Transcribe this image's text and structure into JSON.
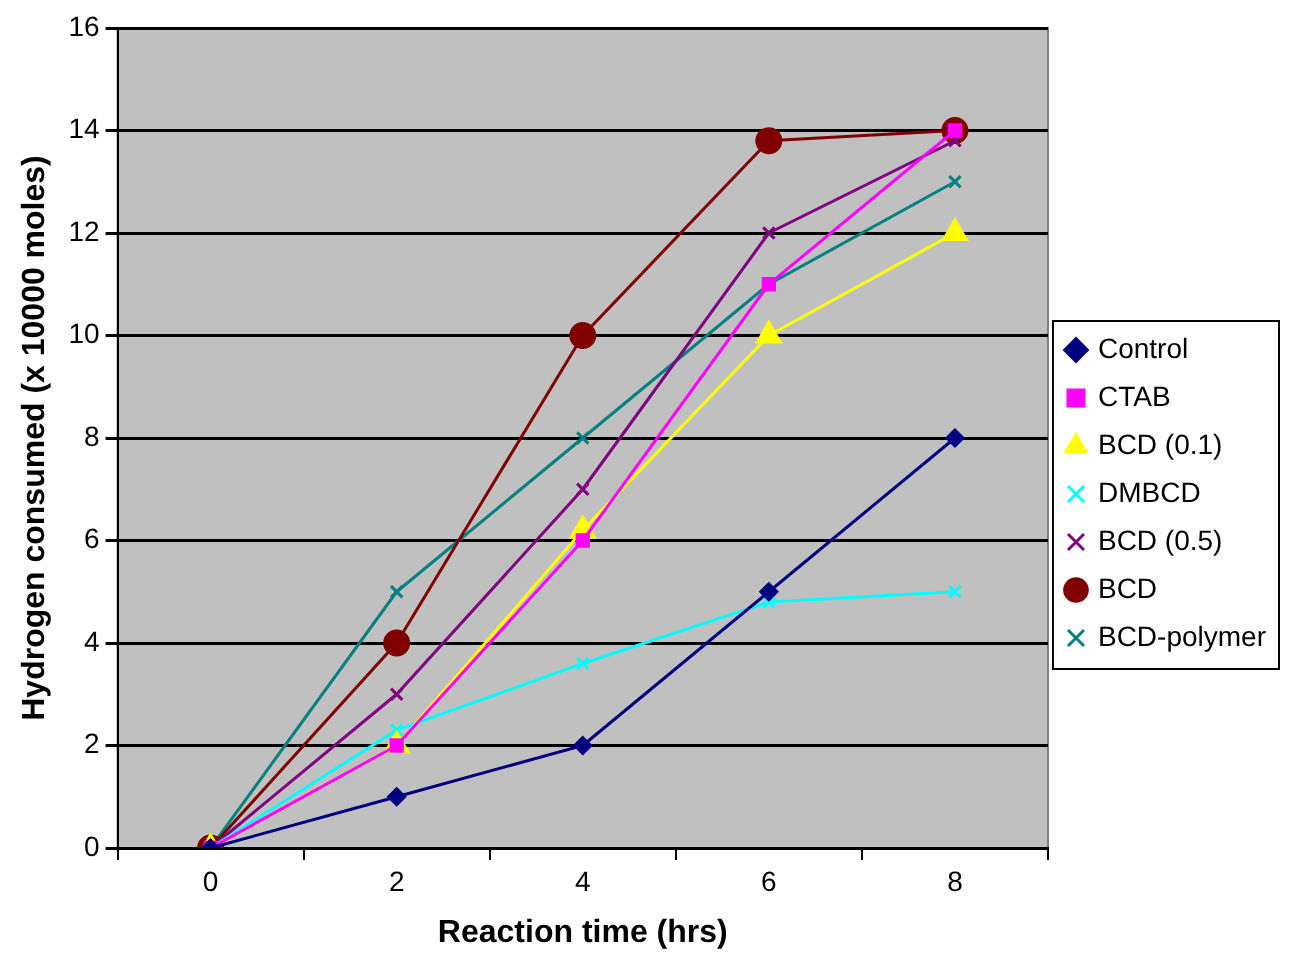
{
  "chart_data": {
    "type": "line",
    "xlabel": "Reaction time (hrs)",
    "ylabel": "Hydrogen consumed (x 10000 moles)",
    "categories": [
      "0",
      "2",
      "4",
      "6",
      "8"
    ],
    "series": [
      {
        "name": "Control",
        "color": "#000080",
        "marker": "diamond",
        "values": [
          0,
          1,
          2,
          5,
          8
        ]
      },
      {
        "name": "CTAB",
        "color": "#ff00ff",
        "marker": "square",
        "values": [
          0,
          2,
          6,
          11,
          14
        ]
      },
      {
        "name": "BCD (0.1)",
        "color": "#ffff00",
        "marker": "triangle",
        "values": [
          0,
          2,
          6.2,
          10,
          12
        ]
      },
      {
        "name": "DMBCD",
        "color": "#00ffff",
        "marker": "cross",
        "values": [
          0,
          2.3,
          3.6,
          4.8,
          5
        ]
      },
      {
        "name": "BCD (0.5)",
        "color": "#800080",
        "marker": "cross",
        "values": [
          0,
          3,
          7,
          12,
          13.8
        ]
      },
      {
        "name": "BCD",
        "color": "#800000",
        "marker": "circle",
        "values": [
          0,
          4,
          10,
          13.8,
          14
        ]
      },
      {
        "name": "BCD-polymer",
        "color": "#008080",
        "marker": "cross",
        "values": [
          0,
          5,
          8,
          11,
          13
        ]
      }
    ],
    "ylim": [
      0,
      16
    ],
    "yticks": [
      0,
      2,
      4,
      6,
      8,
      10,
      12,
      14,
      16
    ],
    "grid": "y",
    "legend": "right"
  }
}
